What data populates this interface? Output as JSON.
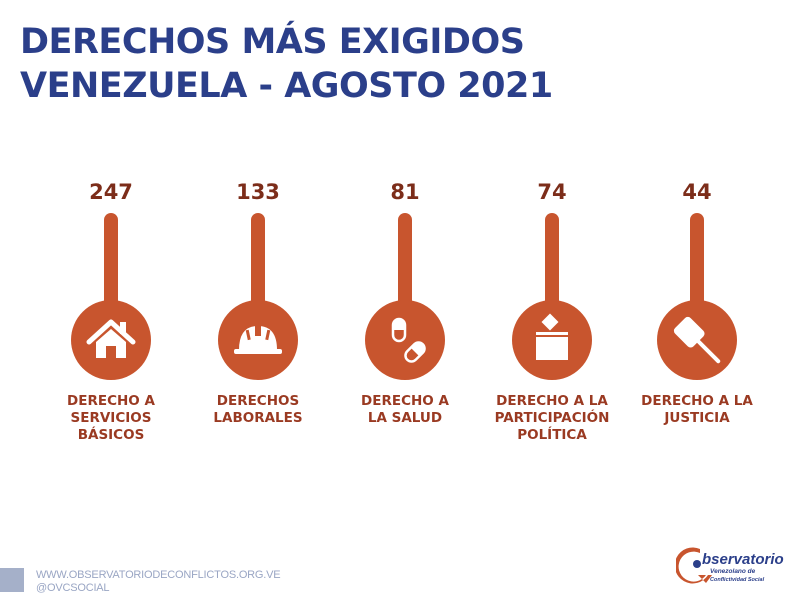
{
  "title": {
    "line1": "DERECHOS MÁS EXIGIDOS",
    "line2": "VENEZUELA - AGOSTO 2021"
  },
  "colors": {
    "title": "#2b3f8a",
    "accent": "#c8552e",
    "value_text": "#7c2d1a",
    "label_text": "#9a3a22"
  },
  "chart_data": {
    "type": "bar",
    "title": "DERECHOS MÁS EXIGIDOS VENEZUELA - AGOSTO 2021",
    "xlabel": "",
    "ylabel": "",
    "categories": [
      "DERECHO A SERVICIOS BÁSICOS",
      "DERECHOS LABORALES",
      "DERECHO A LA SALUD",
      "DERECHO A LA PARTICIPACIÓN POLÍTICA",
      "DERECHO A LA JUSTICIA"
    ],
    "values": [
      247,
      133,
      81,
      74,
      44
    ],
    "items": [
      {
        "value": "247",
        "label_lines": [
          "DERECHO A",
          "SERVICIOS",
          "BÁSICOS"
        ],
        "icon": "house-icon"
      },
      {
        "value": "133",
        "label_lines": [
          "DERECHOS",
          "LABORALES"
        ],
        "icon": "hard-hat-icon"
      },
      {
        "value": "81",
        "label_lines": [
          "DERECHO A",
          "LA SALUD"
        ],
        "icon": "pills-icon"
      },
      {
        "value": "74",
        "label_lines": [
          "DERECHO A LA",
          "PARTICIPACIÓN",
          "POLÍTICA"
        ],
        "icon": "ballot-box-icon"
      },
      {
        "value": "44",
        "label_lines": [
          "DERECHO A LA",
          "JUSTICIA"
        ],
        "icon": "gavel-icon"
      }
    ]
  },
  "footer": {
    "website": "WWW.OBSERVATORIODECONFLICTOS.ORG.VE",
    "social": "@OVCSOCIAL"
  },
  "logo": {
    "name": "bservatorio",
    "line2": "Venezolano de",
    "line3": "Conflictividad Social"
  }
}
